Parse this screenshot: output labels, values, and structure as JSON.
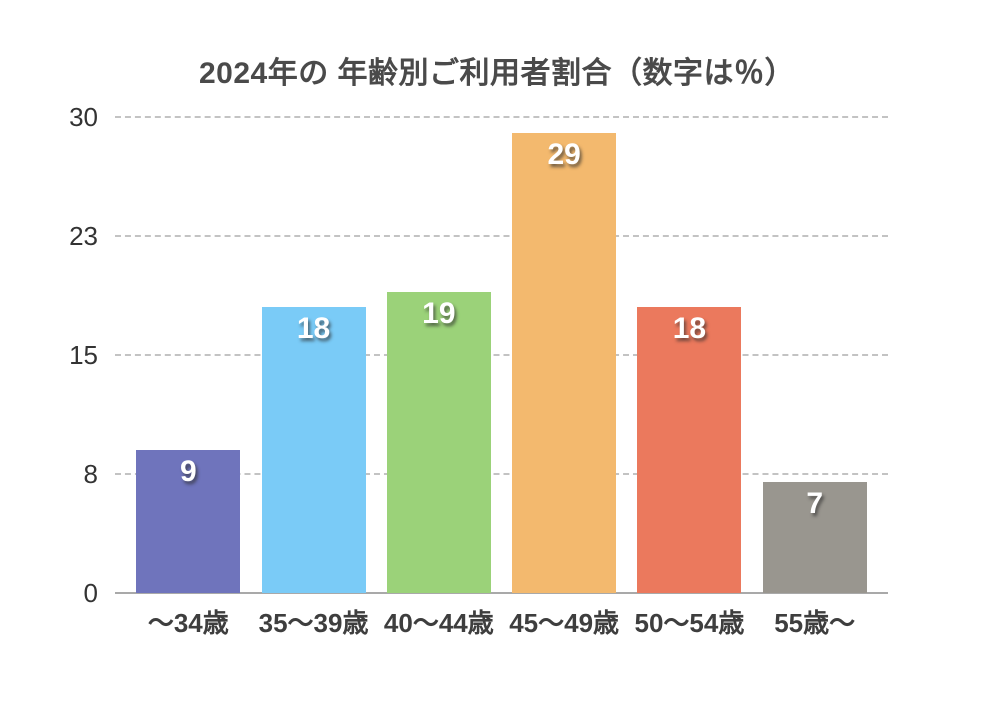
{
  "chart_data": {
    "type": "bar",
    "title": "2024年の 年齢別ご利用者割合（数字は％）",
    "categories": [
      "～34歳",
      "35～39歳",
      "40～44歳",
      "45～49歳",
      "50～54歳",
      "55歳～"
    ],
    "values": [
      9,
      18,
      19,
      29,
      18,
      7
    ],
    "bar_colors": [
      "#6F74BC",
      "#7ACBF7",
      "#9BD279",
      "#F3B96E",
      "#EB795D",
      "#99968F"
    ],
    "xlabel": "",
    "ylabel": "",
    "ylim": [
      0,
      30
    ],
    "yticks": [
      {
        "value": 30,
        "label": "30"
      },
      {
        "value": 22.5,
        "label": "23"
      },
      {
        "value": 15,
        "label": "15"
      },
      {
        "value": 7.5,
        "label": "8"
      },
      {
        "value": 0,
        "label": "0"
      }
    ],
    "grid": "horizontal-dashed",
    "legend_position": "none",
    "data_labels": "inside-top, white bold with drop shadow"
  },
  "colors": {
    "background": "#ffffff",
    "title_text": "#4a4a4a",
    "axis_tick_text": "#333333",
    "category_text": "#3e3e3e",
    "gridline": "#c3c3c3",
    "axis_line": "#a9a9a9",
    "data_label_text": "#ffffff"
  }
}
